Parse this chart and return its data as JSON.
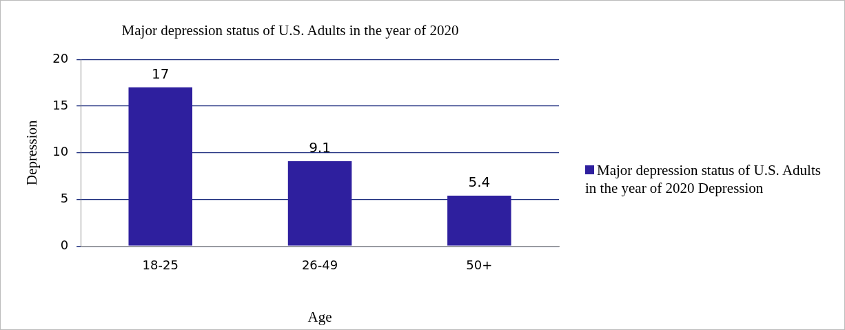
{
  "chart_data": {
    "type": "bar",
    "title": "Major depression status of U.S. Adults in the year of 2020",
    "xlabel": "Age",
    "ylabel": "Depression",
    "categories": [
      "18-25",
      "26-49",
      "50+"
    ],
    "series": [
      {
        "name": "Major depression status of U.S. Adults in the year of 2020 Depression",
        "color": "#2e1f9e",
        "values": [
          17,
          9.1,
          5.4
        ]
      }
    ],
    "ylim": [
      0,
      20
    ],
    "yticks": [
      0,
      5,
      10,
      15,
      20
    ],
    "grid": "y",
    "legend": "right",
    "data_labels": true
  }
}
